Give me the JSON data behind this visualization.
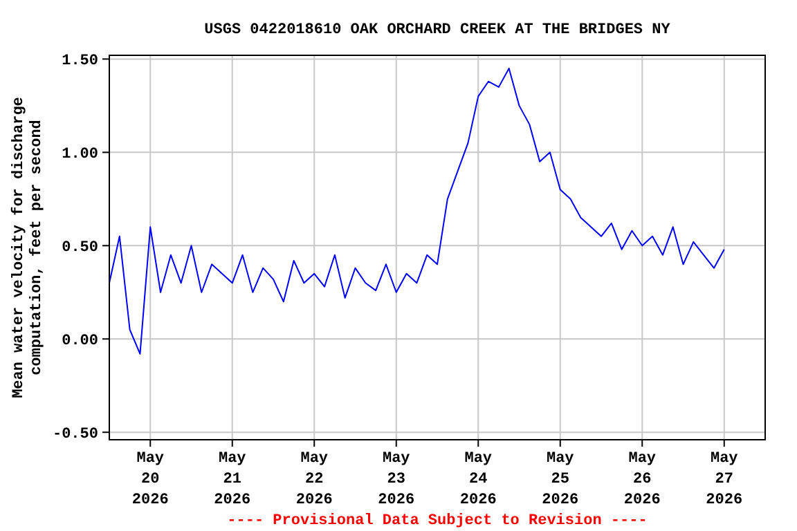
{
  "chart_data": {
    "type": "line",
    "title": "USGS 0422018610 OAK ORCHARD CREEK AT THE BRIDGES NY",
    "ylabel": "Mean water velocity for discharge\ncomputation, feet per second",
    "annotations": [
      "---- Provisional Data Subject to Revision ----"
    ],
    "x": [
      "2026-05-19T12:00",
      "2026-05-19T15:00",
      "2026-05-19T18:00",
      "2026-05-19T21:00",
      "2026-05-20T00:00",
      "2026-05-20T03:00",
      "2026-05-20T06:00",
      "2026-05-20T09:00",
      "2026-05-20T12:00",
      "2026-05-20T15:00",
      "2026-05-20T18:00",
      "2026-05-20T21:00",
      "2026-05-21T00:00",
      "2026-05-21T03:00",
      "2026-05-21T06:00",
      "2026-05-21T09:00",
      "2026-05-21T12:00",
      "2026-05-21T15:00",
      "2026-05-21T18:00",
      "2026-05-21T21:00",
      "2026-05-22T00:00",
      "2026-05-22T03:00",
      "2026-05-22T06:00",
      "2026-05-22T09:00",
      "2026-05-22T12:00",
      "2026-05-22T15:00",
      "2026-05-22T18:00",
      "2026-05-22T21:00",
      "2026-05-23T00:00",
      "2026-05-23T03:00",
      "2026-05-23T06:00",
      "2026-05-23T09:00",
      "2026-05-23T12:00",
      "2026-05-23T15:00",
      "2026-05-23T18:00",
      "2026-05-23T21:00",
      "2026-05-24T00:00",
      "2026-05-24T03:00",
      "2026-05-24T06:00",
      "2026-05-24T09:00",
      "2026-05-24T12:00",
      "2026-05-24T15:00",
      "2026-05-24T18:00",
      "2026-05-24T21:00",
      "2026-05-25T00:00",
      "2026-05-25T03:00",
      "2026-05-25T06:00",
      "2026-05-25T09:00",
      "2026-05-25T12:00",
      "2026-05-25T15:00",
      "2026-05-25T18:00",
      "2026-05-25T21:00",
      "2026-05-26T00:00",
      "2026-05-26T03:00",
      "2026-05-26T06:00",
      "2026-05-26T09:00",
      "2026-05-26T12:00",
      "2026-05-26T15:00",
      "2026-05-26T18:00",
      "2026-05-26T21:00",
      "2026-05-27T00:00"
    ],
    "series": [
      {
        "color": "#0000ff",
        "values": [
          0.3,
          0.55,
          0.05,
          -0.08,
          0.6,
          0.25,
          0.45,
          0.3,
          0.5,
          0.25,
          0.4,
          0.35,
          0.3,
          0.45,
          0.25,
          0.38,
          0.32,
          0.2,
          0.42,
          0.3,
          0.35,
          0.28,
          0.45,
          0.22,
          0.38,
          0.3,
          0.26,
          0.4,
          0.25,
          0.35,
          0.3,
          0.45,
          0.4,
          0.75,
          0.9,
          1.05,
          1.3,
          1.38,
          1.35,
          1.45,
          1.25,
          1.15,
          0.95,
          1.0,
          0.8,
          0.75,
          0.65,
          0.6,
          0.55,
          0.62,
          0.48,
          0.58,
          0.5,
          0.55,
          0.45,
          0.6,
          0.4,
          0.52,
          0.45,
          0.38,
          0.48
        ]
      }
    ],
    "xlim": [
      "2026-05-19T12:00",
      "2026-05-27T12:00"
    ],
    "xticks": [
      {
        "value": "2026-05-20",
        "label": "May\n20\n2026"
      },
      {
        "value": "2026-05-21",
        "label": "May\n21\n2026"
      },
      {
        "value": "2026-05-22",
        "label": "May\n22\n2026"
      },
      {
        "value": "2026-05-23",
        "label": "May\n23\n2026"
      },
      {
        "value": "2026-05-24",
        "label": "May\n24\n2026"
      },
      {
        "value": "2026-05-25",
        "label": "May\n25\n2026"
      },
      {
        "value": "2026-05-26",
        "label": "May\n26\n2026"
      },
      {
        "value": "2026-05-27",
        "label": "May\n27\n2026"
      }
    ],
    "ylim": [
      -0.54,
      1.52
    ],
    "yticks": [
      {
        "value": -0.5,
        "label": "-0.50"
      },
      {
        "value": 0,
        "label": "0.00"
      },
      {
        "value": 0.5,
        "label": "0.50"
      },
      {
        "value": 1,
        "label": "1.00"
      },
      {
        "value": 1.5,
        "label": "1.50"
      }
    ],
    "grid": true,
    "line_style": "solid",
    "marker": "none"
  }
}
